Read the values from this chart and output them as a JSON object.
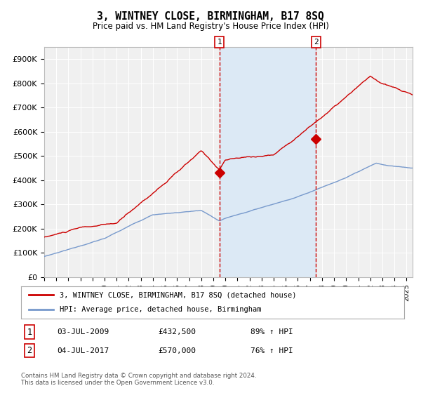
{
  "title": "3, WINTNEY CLOSE, BIRMINGHAM, B17 8SQ",
  "subtitle": "Price paid vs. HM Land Registry's House Price Index (HPI)",
  "background_color": "#ffffff",
  "plot_bg_color": "#f0f0f0",
  "grid_color": "#ffffff",
  "red_line_color": "#cc0000",
  "blue_line_color": "#7799cc",
  "shade_color": "#dce9f5",
  "dashed_color": "#cc0000",
  "marker_color": "#cc0000",
  "ylim": [
    0,
    950000
  ],
  "yticks": [
    0,
    100000,
    200000,
    300000,
    400000,
    500000,
    600000,
    700000,
    800000,
    900000
  ],
  "ytick_labels": [
    "£0",
    "£100K",
    "£200K",
    "£300K",
    "£400K",
    "£500K",
    "£600K",
    "£700K",
    "£800K",
    "£900K"
  ],
  "sale1_date_num": 2009.5,
  "sale1_price": 432500,
  "sale2_date_num": 2017.5,
  "sale2_price": 570000,
  "legend_line1": "3, WINTNEY CLOSE, BIRMINGHAM, B17 8SQ (detached house)",
  "legend_line2": "HPI: Average price, detached house, Birmingham",
  "footer": "Contains HM Land Registry data © Crown copyright and database right 2024.\nThis data is licensed under the Open Government Licence v3.0.",
  "xmin": 1995.0,
  "xmax": 2025.5
}
